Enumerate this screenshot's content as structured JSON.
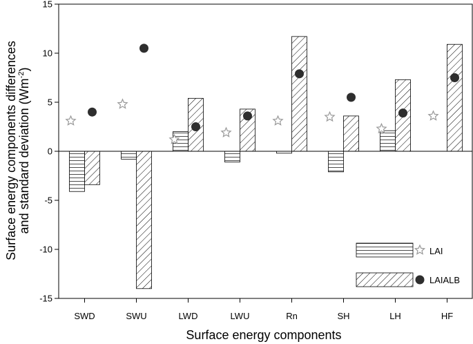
{
  "chart_data": {
    "type": "bar",
    "xlabel": "Surface energy components",
    "ylabel_line1": "Surface energy components differences",
    "ylabel_line2_prefix": "and standard deviation (Wm",
    "ylabel_line2_sup": "-2",
    "ylabel_line2_suffix": ")",
    "categories": [
      "SWD",
      "SWU",
      "LWD",
      "LWU",
      "Rn",
      "SH",
      "LH",
      "HF"
    ],
    "ylim": [
      -15,
      15
    ],
    "yticks": [
      -15,
      -10,
      -5,
      0,
      5,
      10,
      15
    ],
    "ytick_labels": [
      "-15",
      "-10",
      "-5",
      "0",
      "5",
      "10",
      "15"
    ],
    "grid": false,
    "legend_position": "bottom-right",
    "series": [
      {
        "name": "LAI",
        "kind": "bar",
        "hatch": "horizontal",
        "values": [
          -4.1,
          -0.8,
          2.0,
          -1.1,
          -0.2,
          -2.1,
          2.1,
          0.0
        ],
        "sd_marker": "star",
        "sd_values": [
          3.1,
          4.8,
          1.2,
          1.9,
          3.1,
          3.5,
          2.3,
          3.6
        ]
      },
      {
        "name": "LAIALB",
        "kind": "bar",
        "hatch": "diagonal",
        "values": [
          -3.4,
          -14.0,
          5.4,
          4.3,
          11.7,
          3.6,
          7.3,
          10.9
        ],
        "sd_marker": "circle",
        "sd_values": [
          4.0,
          10.5,
          2.5,
          3.6,
          7.9,
          5.5,
          3.9,
          7.5
        ]
      }
    ]
  }
}
